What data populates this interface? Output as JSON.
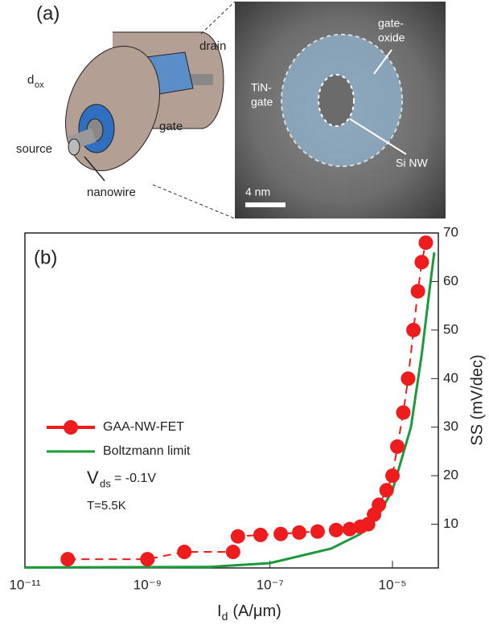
{
  "panel_a": {
    "label": "(a)",
    "drain": "drain",
    "d": "d",
    "ox": "ox",
    "gate": "gate",
    "source": "source",
    "nanowire": "nanowire",
    "tin_1": "TiN-",
    "tin_2": "gate",
    "oxide_1": "gate-",
    "oxide_2": "oxide",
    "si_nw": "Si NW",
    "scale": "4 nm"
  },
  "chart_data": {
    "type": "scatter-line",
    "panel_label": "(b)",
    "x_label": {
      "main": "I",
      "sub": "d",
      "unit": "(A/μm)"
    },
    "y_label": "SS  (mV/dec)",
    "log_x": true,
    "xlim": [
      1e-11,
      5.6e-05
    ],
    "ylim": [
      1,
      70
    ],
    "xticks": [
      {
        "value": 1e-11,
        "label": "10⁻¹¹"
      },
      {
        "value": 1e-09,
        "label": "10⁻⁹"
      },
      {
        "value": 1e-07,
        "label": "10⁻⁷"
      },
      {
        "value": 1e-05,
        "label": "10⁻⁵"
      }
    ],
    "yticks": [
      10,
      20,
      30,
      40,
      50,
      60,
      70
    ],
    "legend": "left",
    "series": [
      {
        "name": "GAA-NW-FET",
        "color": "#ee1c1c",
        "x": [
          5e-11,
          1e-09,
          4e-09,
          2.5e-08,
          3e-08,
          7e-08,
          1.5e-07,
          3e-07,
          6e-07,
          1.2e-06,
          2e-06,
          3e-06,
          4e-06,
          5e-06,
          6e-06,
          8e-06,
          1e-05,
          1.2e-05,
          1.5e-05,
          1.8e-05,
          2.2e-05,
          2.6e-05,
          3e-05,
          3.5e-05
        ],
        "values": [
          2.8,
          2.8,
          4.3,
          4.3,
          7.5,
          7.8,
          8,
          8.3,
          8.5,
          8.8,
          9,
          9.5,
          10,
          12,
          14,
          17,
          20,
          26,
          33,
          40,
          50,
          58,
          64,
          68
        ]
      },
      {
        "name": "Boltzmann limit",
        "color": "#1a9a3a",
        "x": [
          1e-11,
          1e-08,
          1e-07,
          1e-06,
          3e-06,
          6e-06,
          1e-05,
          2e-05,
          3e-05,
          4e-05,
          4.8e-05
        ],
        "values": [
          1.1,
          1.2,
          2,
          5,
          8,
          12,
          17,
          30,
          45,
          58,
          66
        ]
      }
    ],
    "annotations": {
      "v": "V",
      "v_sub": "ds",
      "v_rest": "= -0.1V",
      "t": "T=5.5K"
    }
  }
}
